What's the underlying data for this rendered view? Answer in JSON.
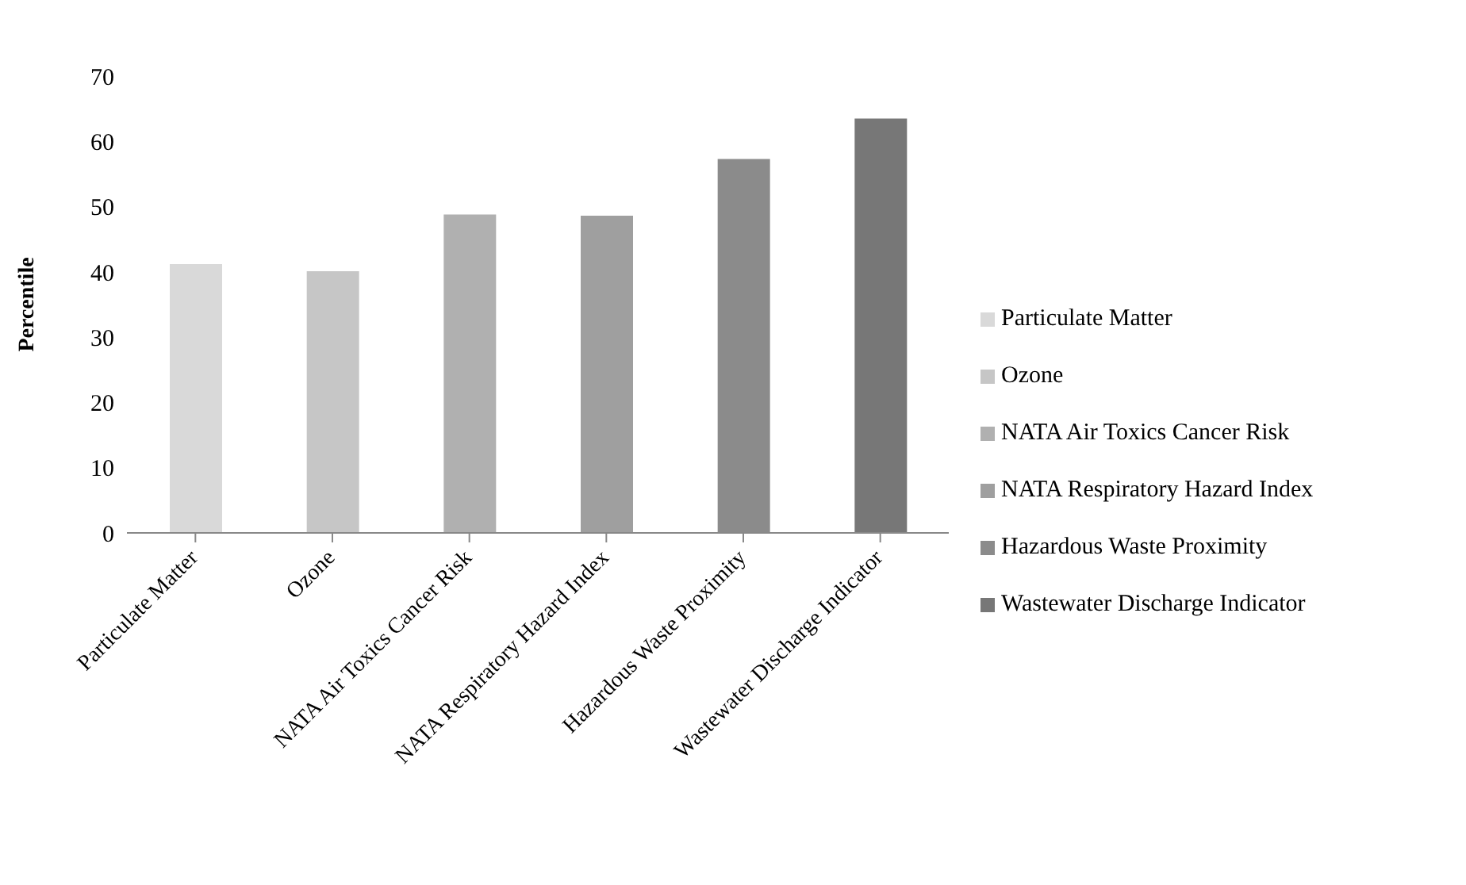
{
  "chart_data": {
    "type": "bar",
    "ylabel": "Percentile",
    "categories": [
      "Particulate Matter",
      "Ozone",
      "NATA Air Toxics Cancer Risk",
      "NATA Respiratory Hazard Index",
      "Hazardous Waste Proximity",
      "Wastewater Discharge Indicator"
    ],
    "stacked": true,
    "series": [
      {
        "name": "Particulate Matter",
        "color": "#d9d9d9",
        "values": [
          41.2,
          null,
          null,
          null,
          null,
          null
        ]
      },
      {
        "name": "Ozone",
        "color": "#c6c6c6",
        "values": [
          null,
          40.1,
          null,
          null,
          null,
          null
        ]
      },
      {
        "name": "NATA Air Toxics Cancer Risk",
        "color": "#b0b0b0",
        "values": [
          null,
          null,
          48.8,
          null,
          null,
          null
        ]
      },
      {
        "name": "NATA Respiratory Hazard Index",
        "color": "#9f9f9f",
        "values": [
          null,
          null,
          null,
          48.6,
          null,
          null
        ]
      },
      {
        "name": "Hazardous Waste Proximity",
        "color": "#8b8b8b",
        "values": [
          null,
          null,
          null,
          null,
          57.3,
          null
        ]
      },
      {
        "name": "Wastewater Discharge Indicator",
        "color": "#777777",
        "values": [
          null,
          null,
          null,
          null,
          null,
          63.5
        ]
      }
    ],
    "ylim": [
      0,
      70
    ],
    "yticks": [
      0,
      10,
      20,
      30,
      40,
      50,
      60,
      70
    ],
    "grid": false,
    "legend": "right"
  }
}
